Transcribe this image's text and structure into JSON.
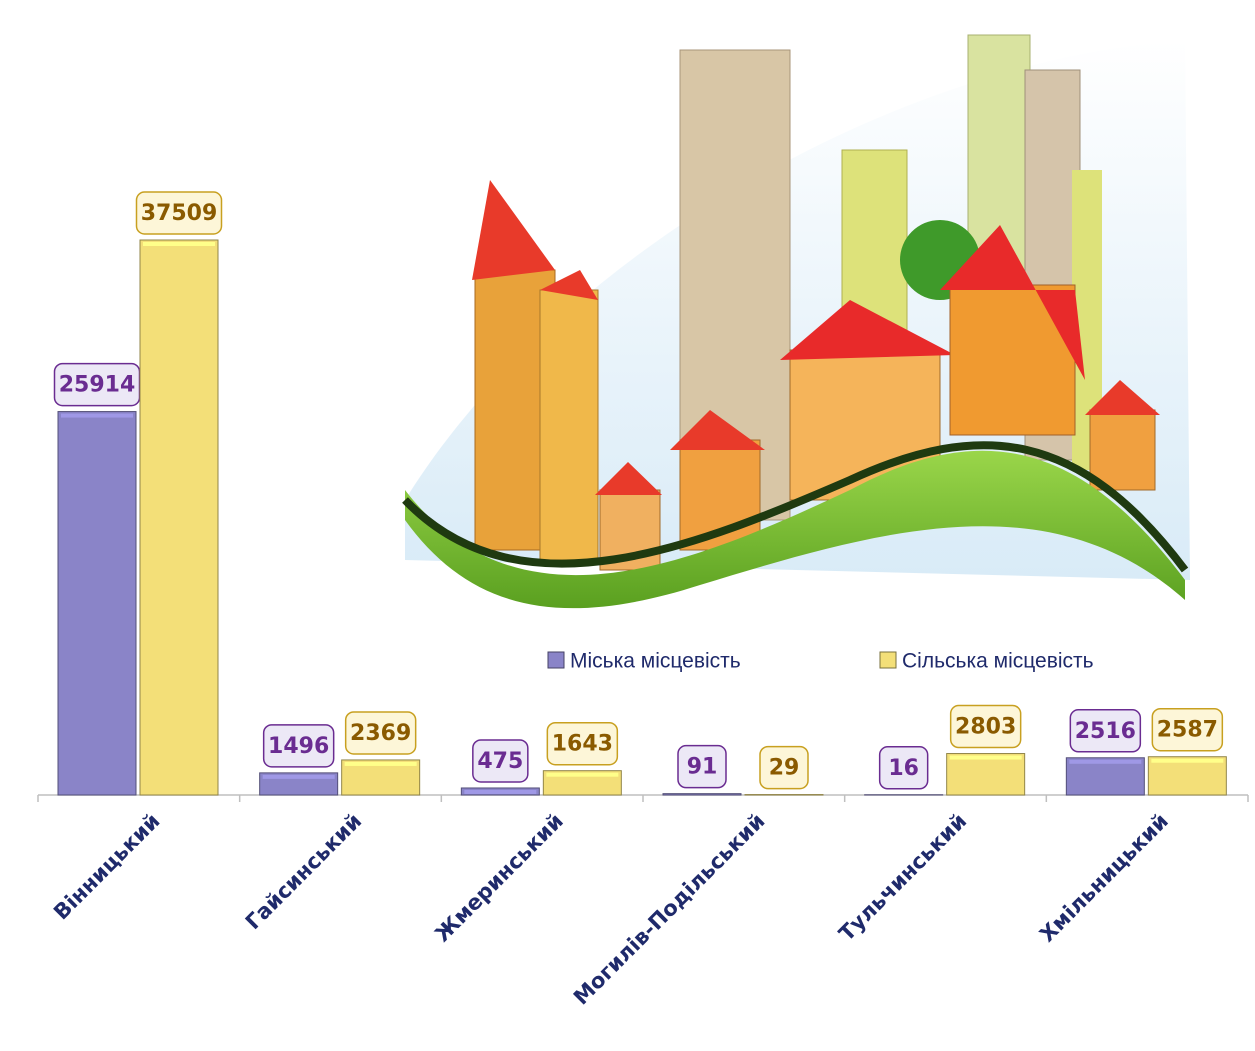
{
  "chart_data": {
    "type": "bar",
    "categories": [
      "Вінницький",
      "Гайсинський",
      "Жмеринський",
      "Могилів-Подільський",
      "Тульчинський",
      "Хмільницький"
    ],
    "series": [
      {
        "name": "Міська місцевість",
        "color": "#8a84c8",
        "values": [
          25914,
          1496,
          475,
          91,
          16,
          2516
        ]
      },
      {
        "name": "Сільська місцевість",
        "color": "#f3df78",
        "values": [
          37509,
          2369,
          1643,
          29,
          2803,
          2587
        ]
      }
    ],
    "data_labels": true
  }
}
